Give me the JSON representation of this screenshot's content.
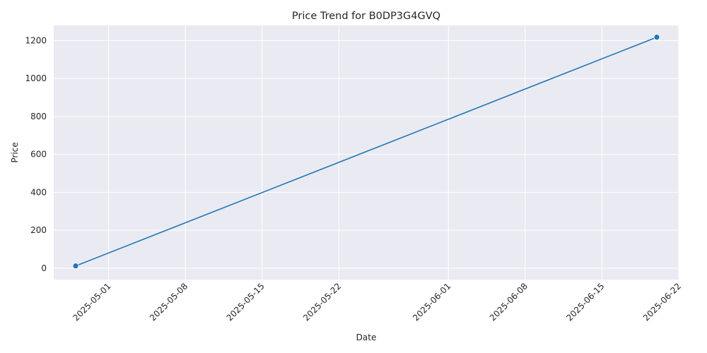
{
  "chart_data": {
    "type": "line",
    "title": "Price Trend for B0DP3G4GVQ",
    "xlabel": "Date",
    "ylabel": "Price",
    "x_ticks": [
      "2025-05-01",
      "2025-05-08",
      "2025-05-15",
      "2025-05-22",
      "2025-06-01",
      "2025-06-08",
      "2025-06-15",
      "2025-06-22"
    ],
    "y_ticks": [
      0,
      200,
      400,
      600,
      800,
      1000,
      1200
    ],
    "xlim": [
      "2025-04-26",
      "2025-06-22"
    ],
    "ylim": [
      -60,
      1280
    ],
    "grid": true,
    "series": [
      {
        "color": "#1f77b4",
        "marker": "circle",
        "x": [
          "2025-04-28",
          "2025-04-28",
          "2025-06-20"
        ],
        "y": [
          10,
          12,
          1218
        ]
      }
    ]
  }
}
